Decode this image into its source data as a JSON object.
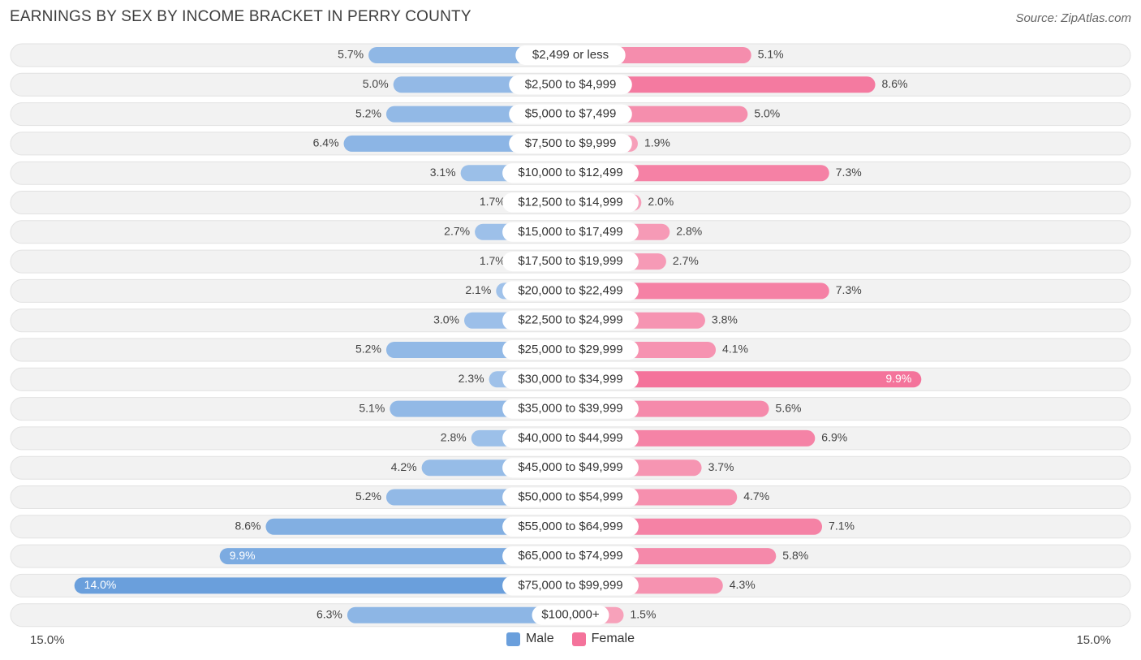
{
  "title": "EARNINGS BY SEX BY INCOME BRACKET IN PERRY COUNTY",
  "source": "Source: ZipAtlas.com",
  "colors": {
    "male": "#6a9fdc",
    "male_light": "#a9c8ec",
    "female": "#f4739b",
    "female_light": "#f7a9c0",
    "row_bg": "#f2f2f2",
    "row_border": "#e2e2e2"
  },
  "chart_data": {
    "type": "bar",
    "orientation": "horizontal-diverging",
    "title": "EARNINGS BY SEX BY INCOME BRACKET IN PERRY COUNTY",
    "categories": [
      "$2,499 or less",
      "$2,500 to $4,999",
      "$5,000 to $7,499",
      "$7,500 to $9,999",
      "$10,000 to $12,499",
      "$12,500 to $14,999",
      "$15,000 to $17,499",
      "$17,500 to $19,999",
      "$20,000 to $22,499",
      "$22,500 to $24,999",
      "$25,000 to $29,999",
      "$30,000 to $34,999",
      "$35,000 to $39,999",
      "$40,000 to $44,999",
      "$45,000 to $49,999",
      "$50,000 to $54,999",
      "$55,000 to $64,999",
      "$65,000 to $74,999",
      "$75,000 to $99,999",
      "$100,000+"
    ],
    "series": [
      {
        "name": "Male",
        "values": [
          5.7,
          5.0,
          5.2,
          6.4,
          3.1,
          1.7,
          2.7,
          1.7,
          2.1,
          3.0,
          5.2,
          2.3,
          5.1,
          2.8,
          4.2,
          5.2,
          8.6,
          9.9,
          14.0,
          6.3
        ],
        "labels": [
          "5.7%",
          "5.0%",
          "5.2%",
          "6.4%",
          "3.1%",
          "1.7%",
          "2.7%",
          "1.7%",
          "2.1%",
          "3.0%",
          "5.2%",
          "2.3%",
          "5.1%",
          "2.8%",
          "4.2%",
          "5.2%",
          "8.6%",
          "9.9%",
          "14.0%",
          "6.3%"
        ]
      },
      {
        "name": "Female",
        "values": [
          5.1,
          8.6,
          5.0,
          1.9,
          7.3,
          2.0,
          2.8,
          2.7,
          7.3,
          3.8,
          4.1,
          9.9,
          5.6,
          6.9,
          3.7,
          4.7,
          7.1,
          5.8,
          4.3,
          1.5
        ],
        "labels": [
          "5.1%",
          "8.6%",
          "5.0%",
          "1.9%",
          "7.3%",
          "2.0%",
          "2.8%",
          "2.7%",
          "7.3%",
          "3.8%",
          "4.1%",
          "9.9%",
          "5.6%",
          "6.9%",
          "3.7%",
          "4.7%",
          "7.1%",
          "5.8%",
          "4.3%",
          "1.5%"
        ]
      }
    ],
    "xlim": [
      -15.0,
      15.0
    ],
    "axis_left_label": "15.0%",
    "axis_right_label": "15.0%",
    "legend": [
      "Male",
      "Female"
    ],
    "legend_position": "bottom-center"
  }
}
